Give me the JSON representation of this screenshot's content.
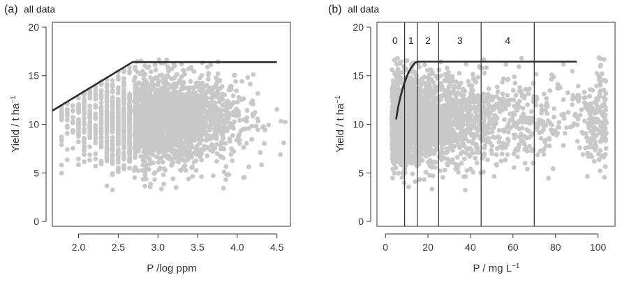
{
  "figure": {
    "panel_a": {
      "label": "(a)",
      "subtitle": "all data"
    },
    "panel_b": {
      "label": "(b)",
      "subtitle": "all data"
    }
  },
  "colors": {
    "points": "#c8c8c8",
    "line": "#2b2b2b",
    "axes": "#333333"
  },
  "chart_data": [
    {
      "type": "scatter",
      "panel": "a",
      "title": "(a) all data",
      "xlabel": "P /log ppm",
      "ylabel": "Yield / t ha",
      "ylabel_sup": "−1",
      "xlim": [
        1.67,
        4.67
      ],
      "ylim": [
        -0.5,
        20.5
      ],
      "xticks": [
        2.0,
        2.5,
        3.0,
        3.5,
        4.0,
        4.5
      ],
      "xtick_labels": [
        "2.0",
        "2.5",
        "3.0",
        "3.5",
        "4.0",
        "4.5"
      ],
      "yticks": [
        0,
        5,
        10,
        15,
        20
      ],
      "ytick_labels": [
        "0",
        "5",
        "10",
        "15",
        "20"
      ],
      "points_description": "dense cloud of ~thousands of grey points, x 1.75–4.6, y 3–17",
      "fit_line": {
        "x": [
          1.67,
          2.68,
          4.5
        ],
        "y": [
          11.4,
          16.4,
          16.4
        ]
      }
    },
    {
      "type": "scatter",
      "panel": "b",
      "title": "(b) all data",
      "xlabel": "P / mg L",
      "xlabel_sup": "−1",
      "ylabel": "Yield / t ha",
      "ylabel_sup": "−1",
      "xlim": [
        -4,
        108
      ],
      "ylim": [
        -0.5,
        20.5
      ],
      "xticks": [
        0,
        20,
        40,
        60,
        80,
        100
      ],
      "xtick_labels": [
        "0",
        "20",
        "40",
        "60",
        "80",
        "100"
      ],
      "yticks": [
        0,
        5,
        10,
        15,
        20
      ],
      "ytick_labels": [
        "0",
        "5",
        "10",
        "15",
        "20"
      ],
      "vlines": [
        9,
        15,
        25,
        45,
        70
      ],
      "regions": [
        {
          "label": "0",
          "x": 4.5
        },
        {
          "label": "1",
          "x": 12
        },
        {
          "label": "2",
          "x": 20
        },
        {
          "label": "3",
          "x": 35
        },
        {
          "label": "4",
          "x": 57.5
        }
      ],
      "fit_curve": {
        "x": [
          5,
          6,
          7,
          8,
          9,
          10,
          11,
          12,
          13,
          14,
          15,
          90
        ],
        "y": [
          10.5,
          11.8,
          12.8,
          13.6,
          14.3,
          14.9,
          15.4,
          15.8,
          16.1,
          16.35,
          16.45,
          16.45
        ]
      }
    }
  ]
}
